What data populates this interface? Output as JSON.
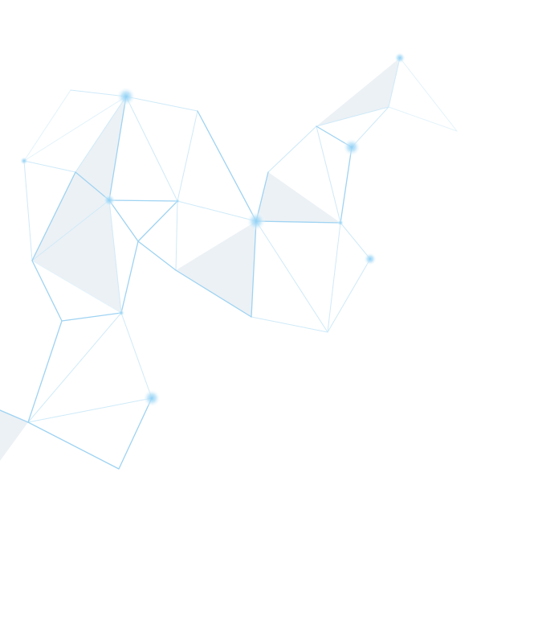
{
  "artwork": {
    "kind": "low-poly network decoration",
    "colors": {
      "background": "#ffffff",
      "edge_strong": "#9fd3f2",
      "edge_light": "#cfeaf8",
      "edge_faint": "#e3f3fb",
      "face_fill": "#e9eef3",
      "node_glow": "#8fd0f5"
    }
  }
}
